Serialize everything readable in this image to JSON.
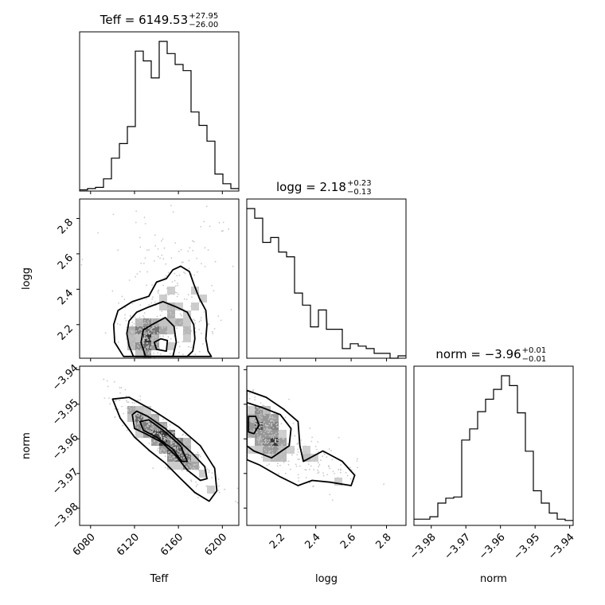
{
  "chart_data": {
    "type": "corner",
    "parameters": [
      "Teff",
      "logg",
      "norm"
    ],
    "axis_labels": {
      "x": [
        "Teff",
        "logg",
        "norm"
      ],
      "y": [
        "",
        "logg",
        "norm"
      ]
    },
    "titles": [
      {
        "label": "Teff",
        "value": "6149.53",
        "plus": "+27.95",
        "minus": "−26.00"
      },
      {
        "label": "logg",
        "value": "2.18",
        "plus": "+0.23",
        "minus": "−0.13"
      },
      {
        "label": "norm",
        "value": "−3.96",
        "plus": "+0.01",
        "minus": "−0.01"
      }
    ],
    "ranges": {
      "Teff": [
        6070,
        6215
      ],
      "logg": [
        2.01,
        2.91
      ],
      "norm": [
        -3.985,
        -3.939
      ]
    },
    "ticks": {
      "Teff": {
        "values": [
          6080,
          6120,
          6160,
          6200
        ],
        "labels": [
          "6080",
          "6120",
          "6160",
          "6200"
        ]
      },
      "logg": {
        "values": [
          2.2,
          2.4,
          2.6,
          2.8
        ],
        "labels": [
          "2.2",
          "2.4",
          "2.6",
          "2.8"
        ]
      },
      "norm": {
        "values": [
          -3.98,
          -3.97,
          -3.96,
          -3.95,
          -3.94
        ],
        "labels": [
          "−3.98",
          "−3.97",
          "−3.96",
          "−3.95",
          "−3.94"
        ]
      }
    },
    "histograms": {
      "Teff": {
        "edges": [
          6070,
          6077.25,
          6084.5,
          6091.75,
          6099,
          6106.25,
          6113.5,
          6120.75,
          6128,
          6135.25,
          6142.5,
          6149.75,
          6157,
          6164.25,
          6171.5,
          6178.75,
          6186,
          6193.25,
          6200.5,
          6207.75,
          6215
        ],
        "counts": [
          1,
          2,
          3,
          10,
          27,
          39,
          53,
          115,
          107,
          93,
          123,
          113,
          104,
          99,
          65,
          54,
          41,
          14,
          6,
          2
        ]
      },
      "logg": {
        "edges": [
          2.01,
          2.055,
          2.1,
          2.145,
          2.19,
          2.235,
          2.28,
          2.325,
          2.37,
          2.415,
          2.46,
          2.505,
          2.55,
          2.595,
          2.64,
          2.685,
          2.73,
          2.775,
          2.82,
          2.865,
          2.91
        ],
        "counts": [
          62,
          58,
          48,
          50,
          44,
          42,
          27,
          22,
          13,
          20,
          12,
          12,
          4,
          6,
          5,
          4,
          2,
          2,
          0,
          1
        ]
      },
      "norm": {
        "edges": [
          -3.985,
          -3.9827,
          -3.9804,
          -3.9781,
          -3.9758,
          -3.9735,
          -3.9712,
          -3.9689,
          -3.9666,
          -3.9643,
          -3.962,
          -3.9597,
          -3.9574,
          -3.9551,
          -3.9528,
          -3.9505,
          -3.9482,
          -3.9459,
          -3.9436,
          -3.9413,
          -3.939
        ],
        "counts": [
          5,
          5,
          7,
          18,
          22,
          23,
          69,
          78,
          92,
          102,
          110,
          121,
          113,
          91,
          60,
          28,
          18,
          10,
          5,
          4
        ]
      }
    },
    "density_2d": [
      {
        "x": "Teff",
        "y": "logg",
        "clusters": [
          {
            "cx": 6130,
            "cy": 2.12,
            "sx": 9,
            "sy": 0.07,
            "n": 140
          },
          {
            "cx": 6150,
            "cy": 2.2,
            "sx": 18,
            "sy": 0.12,
            "n": 170
          },
          {
            "cx": 6158,
            "cy": 2.38,
            "sx": 22,
            "sy": 0.18,
            "n": 100
          },
          {
            "cx": 6145,
            "cy": 2.6,
            "sx": 35,
            "sy": 0.15,
            "n": 50
          }
        ],
        "contours": [
          [
            [
              6119,
              2.02
            ],
            [
              6115,
              2.08
            ],
            [
              6113,
              2.15
            ],
            [
              6115,
              2.22
            ],
            [
              6122,
              2.27
            ],
            [
              6133,
              2.3
            ],
            [
              6146,
              2.33
            ],
            [
              6158,
              2.3
            ],
            [
              6168,
              2.27
            ],
            [
              6174,
              2.2
            ],
            [
              6175,
              2.12
            ],
            [
              6173,
              2.05
            ],
            [
              6168,
              2.02
            ]
          ],
          [
            [
              6110,
              2.02
            ],
            [
              6102,
              2.1
            ],
            [
              6101,
              2.2
            ],
            [
              6105,
              2.28
            ],
            [
              6118,
              2.33
            ],
            [
              6133,
              2.36
            ],
            [
              6140,
              2.44
            ],
            [
              6149,
              2.46
            ],
            [
              6155,
              2.51
            ],
            [
              6162,
              2.53
            ],
            [
              6170,
              2.5
            ],
            [
              6174,
              2.43
            ],
            [
              6179,
              2.35
            ],
            [
              6185,
              2.28
            ],
            [
              6186,
              2.2
            ],
            [
              6185,
              2.12
            ],
            [
              6187,
              2.05
            ],
            [
              6190,
              2.02
            ]
          ],
          [
            [
              6130,
              2.02
            ],
            [
              6126,
              2.1
            ],
            [
              6128,
              2.17
            ],
            [
              6136,
              2.2
            ],
            [
              6148,
              2.24
            ],
            [
              6156,
              2.19
            ],
            [
              6158,
              2.1
            ],
            [
              6155,
              2.02
            ]
          ],
          [
            [
              6140,
              2.06
            ],
            [
              6138,
              2.1
            ],
            [
              6144,
              2.12
            ],
            [
              6150,
              2.11
            ],
            [
              6149,
              2.05
            ]
          ]
        ]
      },
      {
        "x": "Teff",
        "y": "norm",
        "clusters": [
          {
            "cx": 6148,
            "cy": -3.9605,
            "sx": 22,
            "sy": 0.0065,
            "n": 420,
            "corr": -0.9
          }
        ],
        "contours": [
          [
            [
              6118,
              -3.953
            ],
            [
              6120,
              -3.957
            ],
            [
              6130,
              -3.9585
            ],
            [
              6145,
              -3.961
            ],
            [
              6158,
              -3.965
            ],
            [
              6168,
              -3.969
            ],
            [
              6180,
              -3.972
            ],
            [
              6186,
              -3.9715
            ],
            [
              6184,
              -3.968
            ],
            [
              6172,
              -3.964
            ],
            [
              6160,
              -3.9605
            ],
            [
              6148,
              -3.957
            ],
            [
              6132,
              -3.9535
            ],
            [
              6122,
              -3.952
            ]
          ],
          [
            [
              6100,
              -3.9485
            ],
            [
              6107,
              -3.954
            ],
            [
              6120,
              -3.9595
            ],
            [
              6134,
              -3.9635
            ],
            [
              6148,
              -3.967
            ],
            [
              6162,
              -3.9715
            ],
            [
              6175,
              -3.9755
            ],
            [
              6188,
              -3.978
            ],
            [
              6195,
              -3.975
            ],
            [
              6193,
              -3.9685
            ],
            [
              6180,
              -3.962
            ],
            [
              6160,
              -3.9565
            ],
            [
              6138,
              -3.952
            ],
            [
              6115,
              -3.948
            ]
          ],
          [
            [
              6125,
              -3.955
            ],
            [
              6128,
              -3.9575
            ],
            [
              6140,
              -3.9595
            ],
            [
              6155,
              -3.963
            ],
            [
              6163,
              -3.9665
            ],
            [
              6168,
              -3.9665
            ],
            [
              6162,
              -3.962
            ],
            [
              6148,
              -3.958
            ],
            [
              6133,
              -3.9545
            ]
          ]
        ]
      },
      {
        "x": "logg",
        "y": "norm",
        "clusters": [
          {
            "cx": 2.1,
            "cy": -3.957,
            "sx": 0.09,
            "sy": 0.0055,
            "n": 330,
            "corr": -0.65
          },
          {
            "cx": 2.4,
            "cy": -3.966,
            "sx": 0.12,
            "sy": 0.0045,
            "n": 110,
            "corr": -0.6
          }
        ],
        "contours": [
          [
            [
              2.01,
              -3.9495
            ],
            [
              2.1,
              -3.951
            ],
            [
              2.2,
              -3.953
            ],
            [
              2.26,
              -3.957
            ],
            [
              2.25,
              -3.962
            ],
            [
              2.15,
              -3.9655
            ],
            [
              2.05,
              -3.9635
            ],
            [
              2.01,
              -3.962
            ]
          ],
          [
            [
              2.01,
              -3.946
            ],
            [
              2.12,
              -3.948
            ],
            [
              2.22,
              -3.9515
            ],
            [
              2.3,
              -3.955
            ],
            [
              2.31,
              -3.962
            ],
            [
              2.33,
              -3.9665
            ],
            [
              2.44,
              -3.9635
            ],
            [
              2.55,
              -3.9665
            ],
            [
              2.62,
              -3.9705
            ],
            [
              2.6,
              -3.9735
            ],
            [
              2.48,
              -3.9725
            ],
            [
              2.38,
              -3.972
            ],
            [
              2.3,
              -3.9735
            ],
            [
              2.2,
              -3.971
            ],
            [
              2.08,
              -3.9675
            ],
            [
              2.01,
              -3.966
            ]
          ],
          [
            [
              2.02,
              -3.9535
            ],
            [
              2.06,
              -3.9535
            ],
            [
              2.08,
              -3.956
            ],
            [
              2.05,
              -3.9585
            ],
            [
              2.02,
              -3.958
            ]
          ]
        ]
      }
    ]
  }
}
